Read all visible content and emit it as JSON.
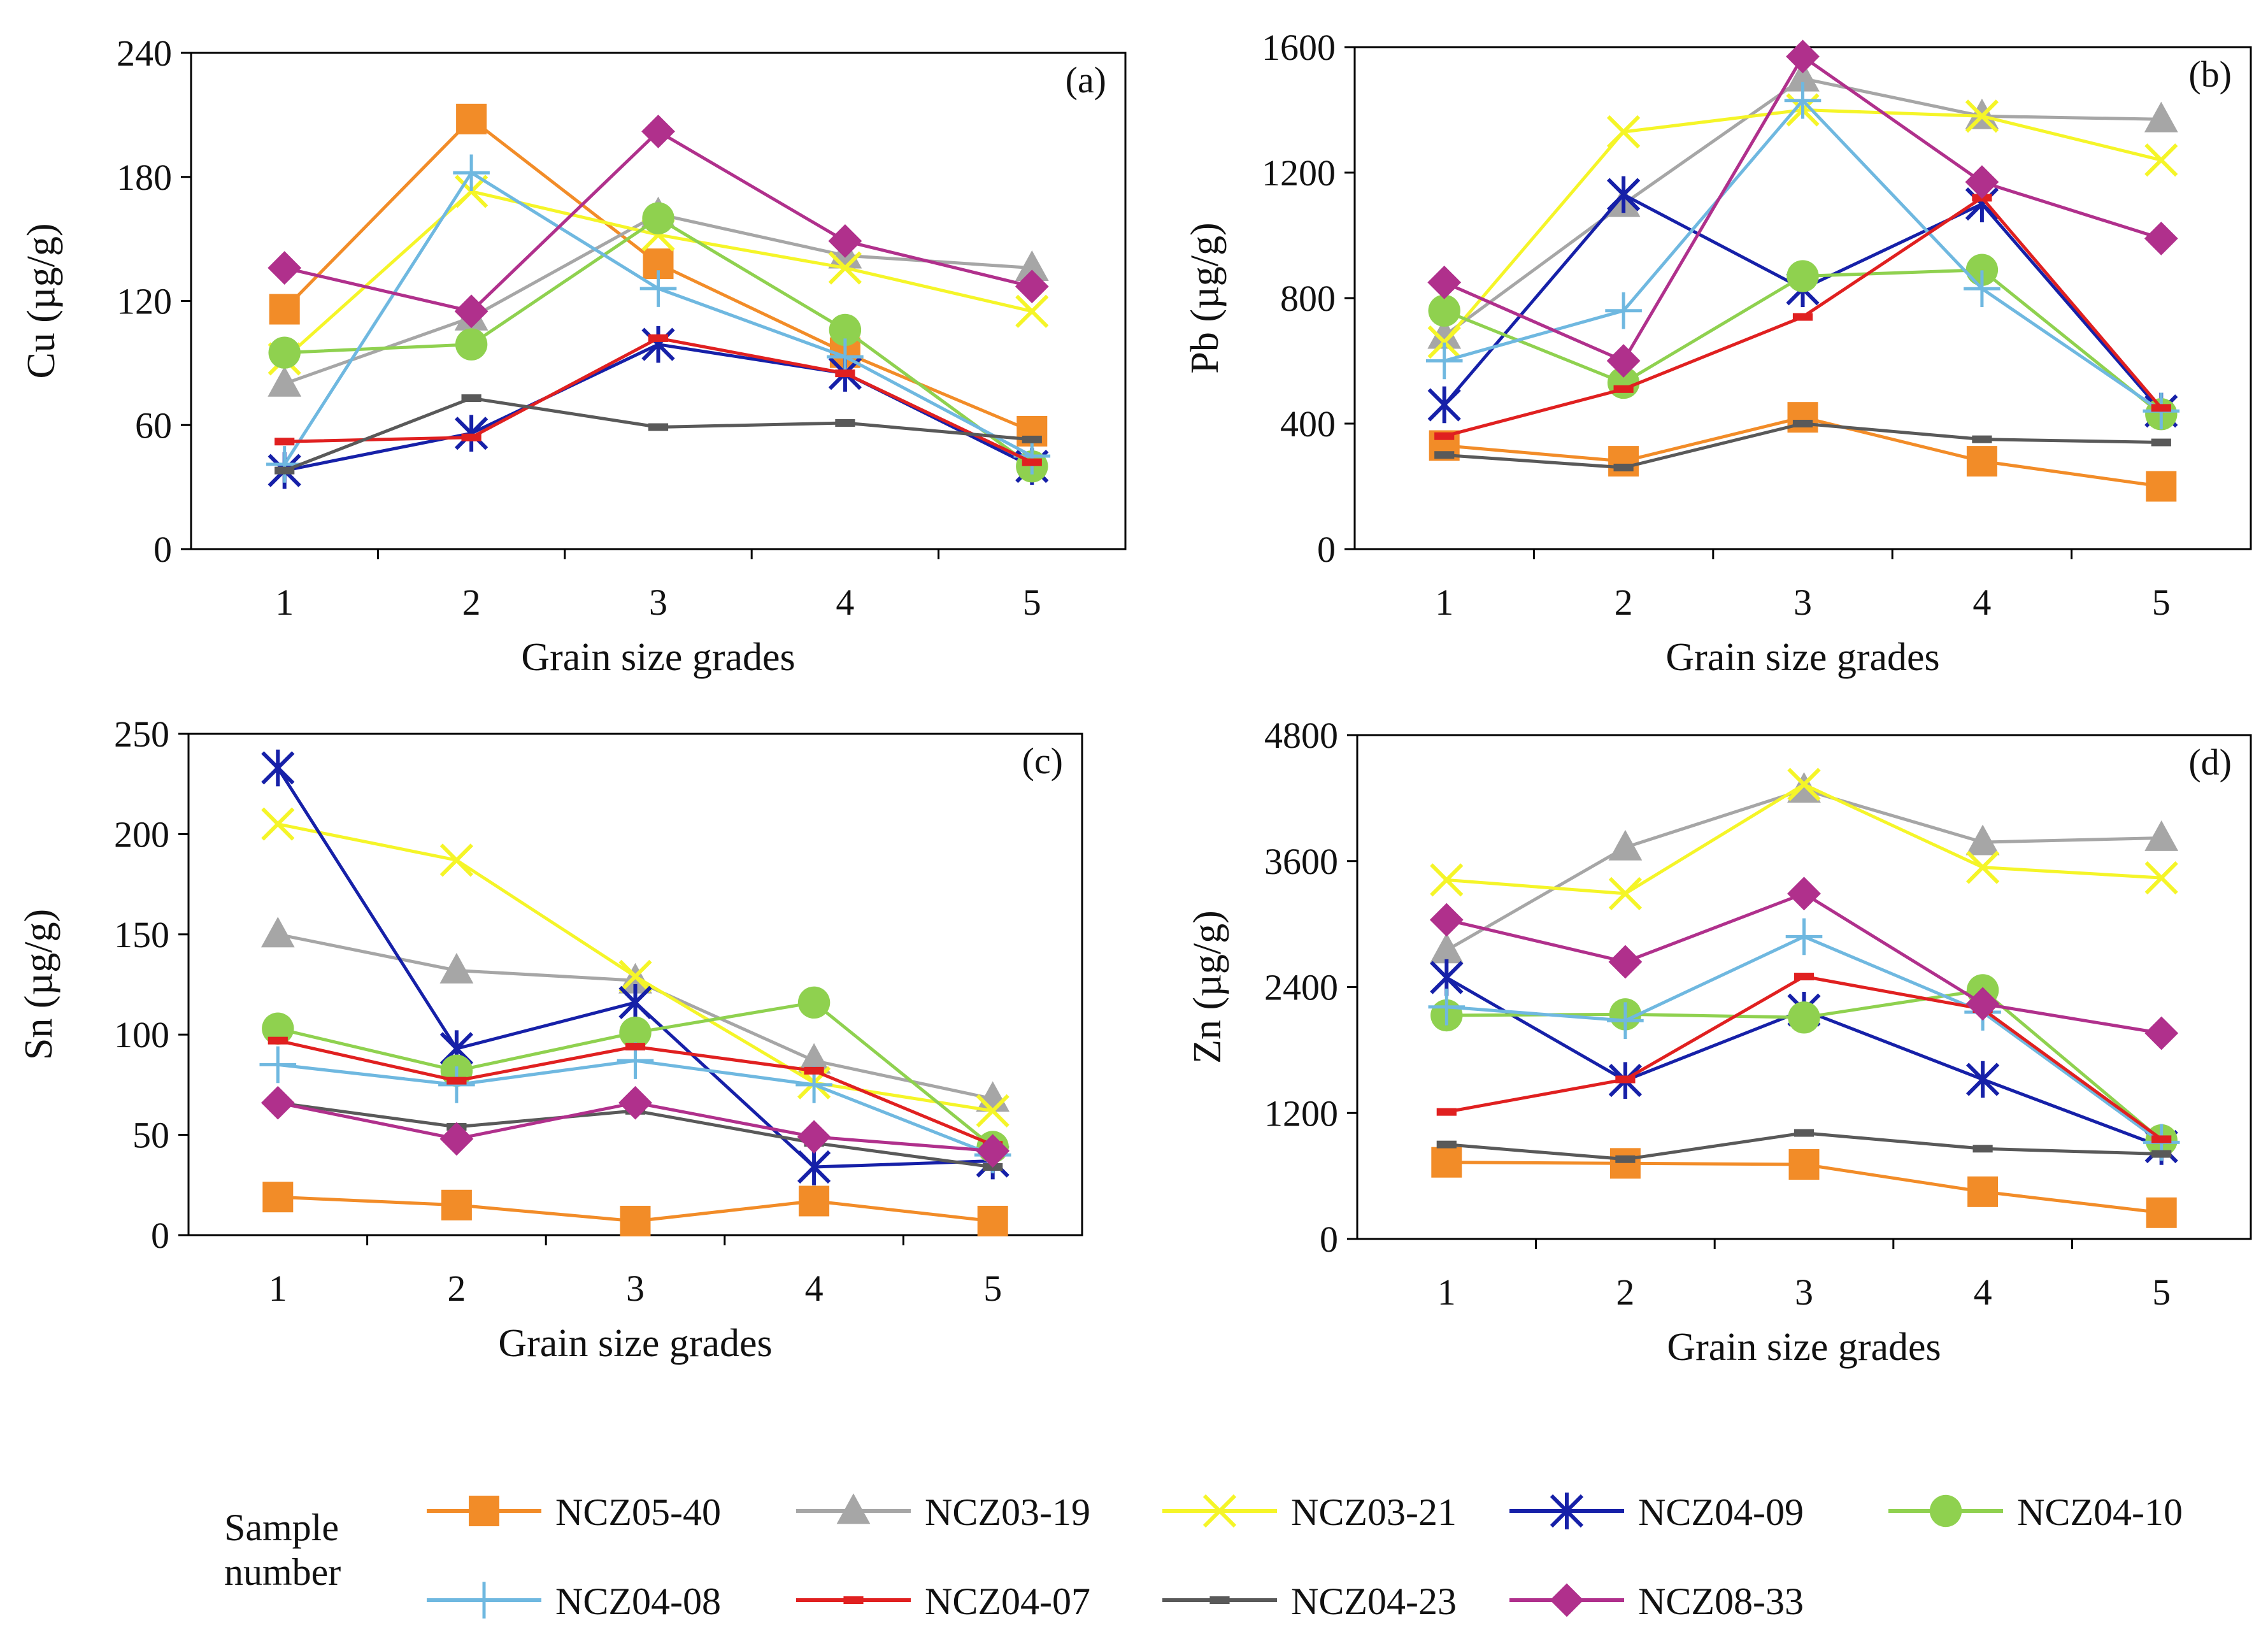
{
  "figure": {
    "legend_title_line1": "Sample",
    "legend_title_line2": "number"
  },
  "series_styles": [
    {
      "name": "NCZ05-40",
      "color": "#F28C28",
      "marker": "square"
    },
    {
      "name": "NCZ03-19",
      "color": "#A6A6A6",
      "marker": "triangle"
    },
    {
      "name": "NCZ03-21",
      "color": "#F5F528",
      "marker": "x"
    },
    {
      "name": "NCZ04-09",
      "color": "#1620A8",
      "marker": "star"
    },
    {
      "name": "NCZ04-10",
      "color": "#8FD14F",
      "marker": "circle"
    },
    {
      "name": "NCZ04-08",
      "color": "#6FB8E0",
      "marker": "plus"
    },
    {
      "name": "NCZ04-07",
      "color": "#E02020",
      "marker": "dash"
    },
    {
      "name": "NCZ04-23",
      "color": "#595959",
      "marker": "dash"
    },
    {
      "name": "NCZ08-33",
      "color": "#B0308C",
      "marker": "diamond"
    }
  ],
  "chart_data": [
    {
      "type": "line",
      "panel_label": "(a)",
      "title": "",
      "xlabel": "Grain size grades",
      "ylabel": "Cu (µg/g)",
      "categories": [
        "1",
        "2",
        "3",
        "4",
        "5"
      ],
      "ylim": [
        0,
        240
      ],
      "yticks": [
        "0",
        "60",
        "120",
        "180",
        "240"
      ],
      "series": [
        {
          "name": "NCZ05-40",
          "values": [
            116,
            208,
            138,
            95,
            57
          ]
        },
        {
          "name": "NCZ03-19",
          "values": [
            80,
            112,
            162,
            142,
            136
          ]
        },
        {
          "name": "NCZ03-21",
          "values": [
            92,
            173,
            152,
            136,
            115
          ]
        },
        {
          "name": "NCZ04-09",
          "values": [
            38,
            56,
            99,
            85,
            40
          ]
        },
        {
          "name": "NCZ04-10",
          "values": [
            95,
            99,
            160,
            106,
            40
          ]
        },
        {
          "name": "NCZ04-08",
          "values": [
            41,
            182,
            126,
            93,
            45
          ]
        },
        {
          "name": "NCZ04-07",
          "values": [
            52,
            54,
            102,
            85,
            42
          ]
        },
        {
          "name": "NCZ04-23",
          "values": [
            38,
            73,
            59,
            61,
            53
          ]
        },
        {
          "name": "NCZ08-33",
          "values": [
            136,
            115,
            202,
            149,
            127
          ]
        }
      ]
    },
    {
      "type": "line",
      "panel_label": "(b)",
      "title": "",
      "xlabel": "Grain size grades",
      "ylabel": "Pb (µg/g)",
      "categories": [
        "1",
        "2",
        "3",
        "4",
        "5"
      ],
      "ylim": [
        0,
        1600
      ],
      "yticks": [
        "0",
        "400",
        "800",
        "1200",
        "1600"
      ],
      "series": [
        {
          "name": "NCZ05-40",
          "values": [
            330,
            280,
            420,
            280,
            200
          ]
        },
        {
          "name": "NCZ03-19",
          "values": [
            680,
            1100,
            1500,
            1380,
            1370
          ]
        },
        {
          "name": "NCZ03-21",
          "values": [
            660,
            1330,
            1400,
            1380,
            1240
          ]
        },
        {
          "name": "NCZ04-09",
          "values": [
            460,
            1130,
            830,
            1100,
            440
          ]
        },
        {
          "name": "NCZ04-10",
          "values": [
            760,
            530,
            870,
            890,
            430
          ]
        },
        {
          "name": "NCZ04-08",
          "values": [
            600,
            760,
            1430,
            830,
            440
          ]
        },
        {
          "name": "NCZ04-07",
          "values": [
            360,
            510,
            740,
            1120,
            450
          ]
        },
        {
          "name": "NCZ04-23",
          "values": [
            300,
            260,
            400,
            350,
            340
          ]
        },
        {
          "name": "NCZ08-33",
          "values": [
            850,
            600,
            1570,
            1170,
            990
          ]
        }
      ]
    },
    {
      "type": "line",
      "panel_label": "(c)",
      "title": "",
      "xlabel": "Grain size grades",
      "ylabel": "Sn (µg/g)",
      "categories": [
        "1",
        "2",
        "3",
        "4",
        "5"
      ],
      "ylim": [
        0,
        250
      ],
      "yticks": [
        "0",
        "50",
        "100",
        "150",
        "200",
        "250"
      ],
      "series": [
        {
          "name": "NCZ05-40",
          "values": [
            19,
            15,
            7,
            17,
            7
          ]
        },
        {
          "name": "NCZ03-19",
          "values": [
            150,
            132,
            127,
            87,
            68
          ]
        },
        {
          "name": "NCZ03-21",
          "values": [
            205,
            187,
            129,
            76,
            62
          ]
        },
        {
          "name": "NCZ04-09",
          "values": [
            233,
            93,
            116,
            34,
            37
          ]
        },
        {
          "name": "NCZ04-10",
          "values": [
            103,
            82,
            101,
            116,
            44
          ]
        },
        {
          "name": "NCZ04-08",
          "values": [
            85,
            75,
            87,
            75,
            40
          ]
        },
        {
          "name": "NCZ04-07",
          "values": [
            97,
            77,
            94,
            82,
            45
          ]
        },
        {
          "name": "NCZ04-23",
          "values": [
            66,
            54,
            62,
            46,
            34
          ]
        },
        {
          "name": "NCZ08-33",
          "values": [
            66,
            48,
            66,
            49,
            42
          ]
        }
      ]
    },
    {
      "type": "line",
      "panel_label": "(d)",
      "title": "",
      "xlabel": "Grain size grades",
      "ylabel": "Zn (µg/g)",
      "categories": [
        "1",
        "2",
        "3",
        "4",
        "5"
      ],
      "ylim": [
        0,
        4800
      ],
      "yticks": [
        "0",
        "1200",
        "2400",
        "3600",
        "4800"
      ],
      "series": [
        {
          "name": "NCZ05-40",
          "values": [
            730,
            720,
            710,
            450,
            250
          ]
        },
        {
          "name": "NCZ03-19",
          "values": [
            2750,
            3730,
            4280,
            3780,
            3820
          ]
        },
        {
          "name": "NCZ03-21",
          "values": [
            3420,
            3290,
            4330,
            3540,
            3440
          ]
        },
        {
          "name": "NCZ04-09",
          "values": [
            2490,
            1510,
            2180,
            1520,
            880
          ]
        },
        {
          "name": "NCZ04-10",
          "values": [
            2130,
            2140,
            2110,
            2370,
            940
          ]
        },
        {
          "name": "NCZ04-08",
          "values": [
            2210,
            2080,
            2880,
            2160,
            920
          ]
        },
        {
          "name": "NCZ04-07",
          "values": [
            1210,
            1520,
            2500,
            2190,
            950
          ]
        },
        {
          "name": "NCZ04-23",
          "values": [
            900,
            760,
            1010,
            860,
            810
          ]
        },
        {
          "name": "NCZ08-33",
          "values": [
            3040,
            2640,
            3290,
            2240,
            1960
          ]
        }
      ]
    }
  ]
}
